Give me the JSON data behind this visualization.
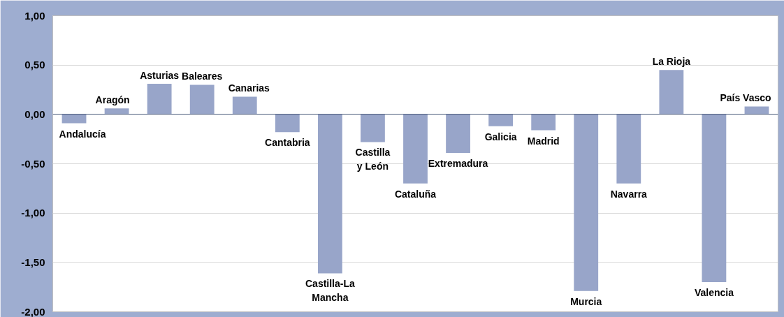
{
  "chart_data": {
    "type": "bar",
    "categories": [
      "Andalucía",
      "Aragón",
      "Asturias",
      "Baleares",
      "Canarias",
      "Cantabria",
      "Castilla-La\nMancha",
      "Castilla\ny León",
      "Cataluña",
      "Extremadura",
      "Galicia",
      "Madrid",
      "Murcia",
      "Navarra",
      "La Rioja",
      "Valencia",
      "País Vasco"
    ],
    "values": [
      -0.09,
      0.06,
      0.31,
      0.3,
      0.18,
      -0.18,
      -1.61,
      -0.28,
      -0.7,
      -0.39,
      -0.12,
      -0.16,
      -1.79,
      -0.7,
      0.45,
      -1.7,
      0.08
    ],
    "color": "#98a5c9",
    "ylim": [
      -2,
      1
    ],
    "yticks": [
      {
        "value": 1,
        "label": "1,00"
      },
      {
        "value": 0.5,
        "label": "0,50"
      },
      {
        "value": 0,
        "label": "0,00"
      },
      {
        "value": -0.5,
        "label": "-0,50"
      },
      {
        "value": -1,
        "label": "-1,00"
      },
      {
        "value": -1.5,
        "label": "-1,50"
      },
      {
        "value": -2,
        "label": "-2,00"
      }
    ],
    "grid": "y",
    "tick_labels": "y"
  }
}
